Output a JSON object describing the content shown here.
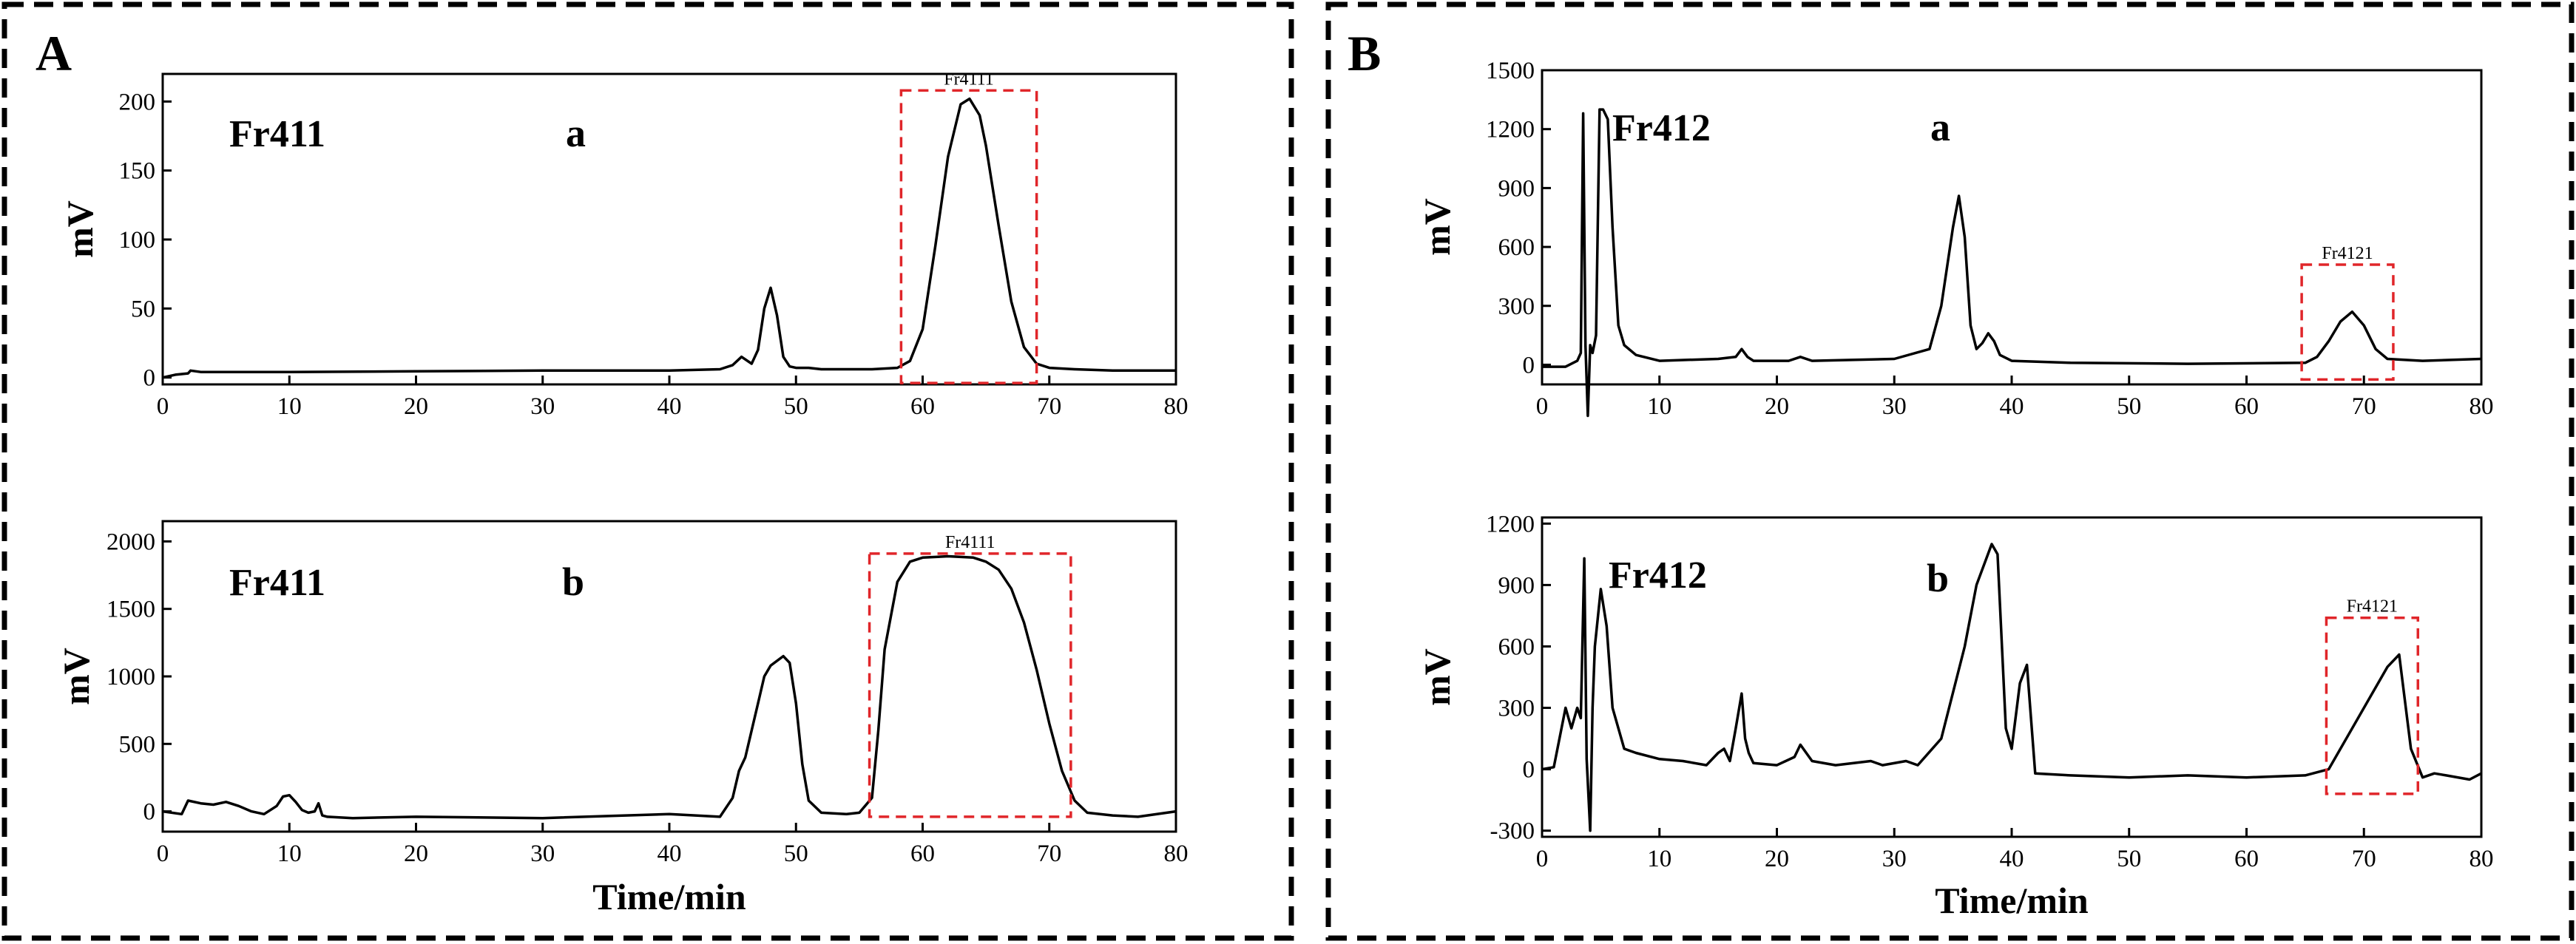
{
  "panels": [
    {
      "letter": "A",
      "sample": "Fr411"
    },
    {
      "letter": "B",
      "sample": "Fr412"
    }
  ],
  "chart_data": [
    {
      "type": "line",
      "panel": "A",
      "subplot": "a",
      "sample_label": "Fr411",
      "sub_label": "a",
      "xlabel": "",
      "ylabel": "mV",
      "xlim": [
        0,
        80
      ],
      "ylim": [
        -5,
        220
      ],
      "xticks": [
        0,
        10,
        20,
        30,
        40,
        50,
        60,
        70,
        80
      ],
      "yticks": [
        0,
        50,
        100,
        150,
        200
      ],
      "x": [
        0,
        1,
        2,
        2.2,
        3,
        5,
        10,
        20,
        30,
        40,
        44,
        45,
        45.7,
        46.5,
        47,
        47.5,
        48,
        48.5,
        49,
        49.5,
        50,
        51,
        52,
        54,
        56,
        58,
        59,
        60,
        61,
        62,
        63,
        63.7,
        64.5,
        65,
        66,
        67,
        68,
        69,
        70,
        72,
        75,
        80
      ],
      "y": [
        0,
        2,
        3,
        5,
        4,
        4,
        4,
        4.5,
        5,
        5,
        6,
        9,
        15,
        10,
        20,
        50,
        65,
        45,
        15,
        8,
        7,
        7,
        6,
        6,
        6,
        7,
        12,
        35,
        95,
        160,
        198,
        202,
        190,
        168,
        110,
        55,
        22,
        10,
        7,
        6,
        5,
        5
      ],
      "region": {
        "label": "Fr4111",
        "x_range": [
          58.3,
          69
        ],
        "y_range": [
          -4,
          208
        ]
      }
    },
    {
      "type": "line",
      "panel": "A",
      "subplot": "b",
      "sample_label": "Fr411",
      "sub_label": "b",
      "xlabel": "Time/min",
      "ylabel": "mV",
      "xlim": [
        0,
        80
      ],
      "ylim": [
        -150,
        2150
      ],
      "xticks": [
        0,
        10,
        20,
        30,
        40,
        50,
        60,
        70,
        80
      ],
      "yticks": [
        0,
        500,
        1000,
        1500,
        2000
      ],
      "x": [
        0,
        1.5,
        2,
        3,
        4,
        5,
        6,
        7,
        8,
        9,
        9.5,
        10,
        10.5,
        11,
        11.5,
        12,
        12.3,
        12.6,
        13,
        15,
        20,
        30,
        40,
        44,
        45,
        45.5,
        46,
        47,
        47.5,
        48,
        49,
        49.5,
        50,
        50.5,
        51,
        52,
        54,
        55,
        56,
        56.5,
        57,
        58,
        59,
        60,
        62,
        64,
        65,
        66,
        67,
        68,
        69,
        70,
        71,
        72,
        73,
        75,
        77,
        80
      ],
      "y": [
        0,
        -20,
        80,
        60,
        50,
        70,
        40,
        0,
        -20,
        40,
        110,
        120,
        70,
        10,
        -10,
        0,
        60,
        -30,
        -40,
        -50,
        -40,
        -50,
        -20,
        -40,
        100,
        300,
        400,
        800,
        1000,
        1080,
        1150,
        1100,
        800,
        350,
        80,
        -10,
        -20,
        -10,
        100,
        600,
        1200,
        1700,
        1850,
        1880,
        1890,
        1880,
        1850,
        1790,
        1650,
        1400,
        1050,
        650,
        300,
        80,
        -10,
        -30,
        -40,
        0
      ],
      "region": {
        "label": "Fr4111",
        "x_range": [
          55.8,
          71.7
        ],
        "y_range": [
          -40,
          1910
        ]
      }
    },
    {
      "type": "line",
      "panel": "B",
      "subplot": "a",
      "sample_label": "Fr412",
      "sub_label": "a",
      "xlabel": "",
      "ylabel": "mV",
      "xlim": [
        0,
        80
      ],
      "ylim": [
        -100,
        1500
      ],
      "xticks": [
        0,
        10,
        20,
        30,
        40,
        50,
        60,
        70,
        80
      ],
      "yticks": [
        0,
        300,
        600,
        900,
        1200,
        1500
      ],
      "x": [
        0,
        2,
        3,
        3.3,
        3.5,
        3.7,
        3.9,
        4.1,
        4.3,
        4.6,
        4.9,
        5.2,
        5.6,
        6,
        6.5,
        7,
        8,
        10,
        15,
        16.5,
        17,
        17.5,
        18,
        21,
        22,
        23,
        30,
        33,
        34,
        35,
        35.5,
        36,
        36.5,
        37,
        37.5,
        38,
        38.5,
        39,
        40,
        45,
        55,
        65,
        66,
        67,
        68,
        69,
        70,
        71,
        72,
        75,
        80
      ],
      "y": [
        -10,
        -10,
        20,
        60,
        1280,
        100,
        -260,
        100,
        60,
        150,
        1300,
        1300,
        1250,
        700,
        200,
        100,
        50,
        20,
        30,
        40,
        80,
        40,
        20,
        20,
        40,
        20,
        30,
        80,
        300,
        700,
        860,
        650,
        200,
        80,
        110,
        160,
        120,
        50,
        20,
        10,
        5,
        10,
        40,
        120,
        220,
        270,
        200,
        80,
        30,
        20,
        30
      ],
      "region": {
        "label": "Fr4121",
        "x_range": [
          64.7,
          72.5
        ],
        "y_range": [
          -75,
          510
        ]
      }
    },
    {
      "type": "line",
      "panel": "B",
      "subplot": "b",
      "sample_label": "Fr412",
      "sub_label": "b",
      "xlabel": "Time/min",
      "ylabel": "mV",
      "xlim": [
        0,
        80
      ],
      "ylim": [
        -330,
        1230
      ],
      "xticks": [
        0,
        10,
        20,
        30,
        40,
        50,
        60,
        70,
        80
      ],
      "yticks": [
        -300,
        0,
        300,
        600,
        900,
        1200
      ],
      "x": [
        0,
        1,
        2,
        2.5,
        3,
        3.3,
        3.6,
        3.8,
        4.1,
        4.3,
        4.5,
        5,
        5.5,
        6,
        7,
        8,
        10,
        12,
        14,
        15,
        15.5,
        16,
        16.5,
        17,
        17.3,
        17.6,
        18,
        20,
        21.5,
        22,
        23,
        25,
        28,
        29,
        31,
        32,
        34,
        36,
        37,
        38.3,
        38.8,
        39.5,
        40,
        40.7,
        41.3,
        42,
        45,
        50,
        55,
        60,
        65,
        67,
        70,
        72,
        73,
        74,
        75,
        76,
        77,
        79,
        80
      ],
      "y": [
        0,
        10,
        300,
        200,
        300,
        250,
        1030,
        50,
        -300,
        300,
        600,
        880,
        700,
        300,
        100,
        80,
        50,
        40,
        20,
        80,
        100,
        40,
        200,
        370,
        150,
        80,
        30,
        20,
        60,
        120,
        40,
        20,
        40,
        20,
        40,
        20,
        150,
        600,
        900,
        1100,
        1050,
        200,
        100,
        420,
        510,
        -20,
        -30,
        -40,
        -30,
        -40,
        -30,
        0,
        300,
        500,
        560,
        100,
        -40,
        -20,
        -30,
        -50,
        -20
      ],
      "region": {
        "label": "Fr4121",
        "x_range": [
          66.8,
          74.6
        ],
        "y_range": [
          -120,
          740
        ]
      }
    }
  ]
}
